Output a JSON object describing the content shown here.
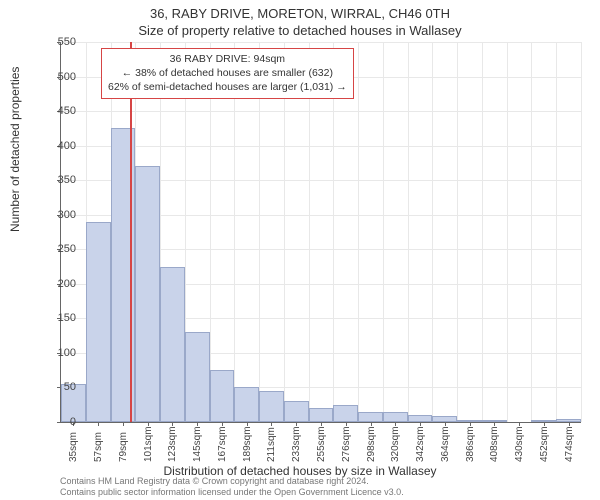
{
  "titles": {
    "line1": "36, RABY DRIVE, MORETON, WIRRAL, CH46 0TH",
    "line2": "Size of property relative to detached houses in Wallasey"
  },
  "axis": {
    "ylabel": "Number of detached properties",
    "xlabel": "Distribution of detached houses by size in Wallasey",
    "ylim": [
      0,
      550
    ],
    "ytick_step": 50,
    "font_size_label": 12,
    "font_size_tick": 11
  },
  "chart": {
    "type": "bar",
    "categories": [
      "35sqm",
      "57sqm",
      "79sqm",
      "101sqm",
      "123sqm",
      "145sqm",
      "167sqm",
      "189sqm",
      "211sqm",
      "233sqm",
      "255sqm",
      "276sqm",
      "298sqm",
      "320sqm",
      "342sqm",
      "364sqm",
      "386sqm",
      "408sqm",
      "430sqm",
      "452sqm",
      "474sqm"
    ],
    "values": [
      55,
      290,
      425,
      370,
      225,
      130,
      75,
      50,
      45,
      30,
      20,
      25,
      15,
      15,
      10,
      8,
      2,
      2,
      0,
      3,
      5
    ],
    "bar_fill": "#c9d3ea",
    "bar_border": "#9aa8c9",
    "grid_color": "#e8e8e8",
    "background": "#ffffff",
    "axis_color": "#666666",
    "marker": {
      "category_after": "79sqm",
      "color": "#d64545"
    }
  },
  "annotation": {
    "line1": "36 RABY DRIVE: 94sqm",
    "line2": "← 38% of detached houses are smaller (632)",
    "line3": "62% of semi-detached houses are larger (1,031) →",
    "border_color": "#d64545"
  },
  "footer": {
    "line1": "Contains HM Land Registry data © Crown copyright and database right 2024.",
    "line2": "Contains public sector information licensed under the Open Government Licence v3.0."
  }
}
